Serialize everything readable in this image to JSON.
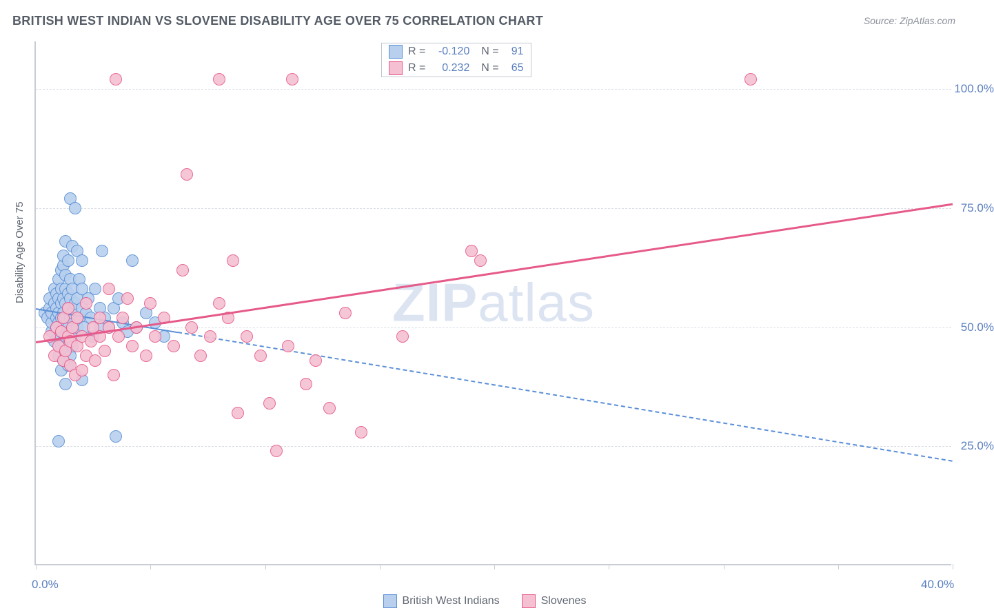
{
  "title": "BRITISH WEST INDIAN VS SLOVENE DISABILITY AGE OVER 75 CORRELATION CHART",
  "source": "Source: ZipAtlas.com",
  "watermark": "ZIPatlas",
  "chart": {
    "type": "scatter",
    "background_color": "#ffffff",
    "grid_color": "#d9dde3",
    "axis_line_color": "#c8ccd4",
    "axis_label_color": "#5a7fbf",
    "title_color": "#555c66",
    "title_fontsize": 18,
    "axis_label_fontsize": 17,
    "ylabel": "Disability Age Over 75",
    "ylabel_fontsize": 15,
    "xlim": [
      0,
      40
    ],
    "ylim": [
      0,
      110
    ],
    "x_axis_labels": [
      {
        "v": 0,
        "label": "0.0%"
      },
      {
        "v": 40,
        "label": "40.0%"
      }
    ],
    "x_tick_positions": [
      0,
      5,
      10,
      15,
      20,
      25,
      30,
      35,
      40
    ],
    "y_gridlines": [
      {
        "v": 25,
        "label": "25.0%"
      },
      {
        "v": 50,
        "label": "50.0%"
      },
      {
        "v": 75,
        "label": "75.0%"
      },
      {
        "v": 100,
        "label": "100.0%"
      }
    ],
    "marker": {
      "radius": 9,
      "stroke_width": 1.2,
      "fill_opacity": 0.35
    },
    "series": [
      {
        "name": "British West Indians",
        "color": "#5a8fd6",
        "fill": "#b8d0ee",
        "R": "-0.120",
        "N": "91",
        "trend": {
          "x1": 0,
          "y1": 54,
          "x2": 40,
          "y2": 22,
          "width": 2.5,
          "solid_until_x": 6.2,
          "dashed": true
        },
        "points": [
          [
            0.4,
            53
          ],
          [
            0.5,
            52
          ],
          [
            0.6,
            54
          ],
          [
            0.6,
            56
          ],
          [
            0.7,
            49
          ],
          [
            0.7,
            51
          ],
          [
            0.7,
            53
          ],
          [
            0.8,
            47
          ],
          [
            0.8,
            55
          ],
          [
            0.8,
            58
          ],
          [
            0.9,
            50
          ],
          [
            0.9,
            52
          ],
          [
            0.9,
            54
          ],
          [
            0.9,
            57
          ],
          [
            1.0,
            44
          ],
          [
            1.0,
            48
          ],
          [
            1.0,
            51
          ],
          [
            1.0,
            53
          ],
          [
            1.0,
            56
          ],
          [
            1.0,
            60
          ],
          [
            1.1,
            41
          ],
          [
            1.1,
            46
          ],
          [
            1.1,
            49
          ],
          [
            1.1,
            52
          ],
          [
            1.1,
            55
          ],
          [
            1.1,
            58
          ],
          [
            1.1,
            62
          ],
          [
            1.2,
            43
          ],
          [
            1.2,
            47
          ],
          [
            1.2,
            50
          ],
          [
            1.2,
            53
          ],
          [
            1.2,
            56
          ],
          [
            1.2,
            63
          ],
          [
            1.2,
            65
          ],
          [
            1.3,
            38
          ],
          [
            1.3,
            45
          ],
          [
            1.3,
            48
          ],
          [
            1.3,
            52
          ],
          [
            1.3,
            55
          ],
          [
            1.3,
            58
          ],
          [
            1.3,
            61
          ],
          [
            1.3,
            68
          ],
          [
            1.4,
            42
          ],
          [
            1.4,
            50
          ],
          [
            1.4,
            54
          ],
          [
            1.4,
            57
          ],
          [
            1.4,
            64
          ],
          [
            1.5,
            44
          ],
          [
            1.5,
            49
          ],
          [
            1.5,
            52
          ],
          [
            1.5,
            56
          ],
          [
            1.5,
            60
          ],
          [
            1.5,
            77
          ],
          [
            1.6,
            46
          ],
          [
            1.6,
            53
          ],
          [
            1.6,
            58
          ],
          [
            1.6,
            67
          ],
          [
            1.7,
            48
          ],
          [
            1.7,
            55
          ],
          [
            1.7,
            75
          ],
          [
            1.8,
            50
          ],
          [
            1.8,
            56
          ],
          [
            1.8,
            66
          ],
          [
            1.9,
            52
          ],
          [
            1.9,
            60
          ],
          [
            2.0,
            39
          ],
          [
            2.0,
            54
          ],
          [
            2.0,
            58
          ],
          [
            2.0,
            64
          ],
          [
            2.1,
            50
          ],
          [
            2.2,
            53
          ],
          [
            2.3,
            56
          ],
          [
            2.4,
            52
          ],
          [
            2.5,
            48
          ],
          [
            2.6,
            58
          ],
          [
            2.8,
            50
          ],
          [
            2.8,
            54
          ],
          [
            2.9,
            66
          ],
          [
            3.0,
            52
          ],
          [
            3.2,
            50
          ],
          [
            3.4,
            54
          ],
          [
            3.6,
            56
          ],
          [
            3.8,
            51
          ],
          [
            4.0,
            49
          ],
          [
            4.2,
            64
          ],
          [
            4.4,
            50
          ],
          [
            4.8,
            53
          ],
          [
            5.2,
            51
          ],
          [
            5.6,
            48
          ],
          [
            1.0,
            26
          ],
          [
            3.5,
            27
          ]
        ]
      },
      {
        "name": "Slovenes",
        "color": "#e65a8a",
        "fill": "#f5c0d2",
        "R": "0.232",
        "N": "65",
        "trend": {
          "x1": 0,
          "y1": 47,
          "x2": 40,
          "y2": 76,
          "width": 3,
          "dashed": false
        },
        "points": [
          [
            0.6,
            48
          ],
          [
            0.8,
            44
          ],
          [
            0.9,
            50
          ],
          [
            1.0,
            46
          ],
          [
            1.1,
            49
          ],
          [
            1.2,
            43
          ],
          [
            1.2,
            52
          ],
          [
            1.3,
            45
          ],
          [
            1.4,
            48
          ],
          [
            1.4,
            54
          ],
          [
            1.5,
            42
          ],
          [
            1.5,
            47
          ],
          [
            1.6,
            50
          ],
          [
            1.7,
            40
          ],
          [
            1.8,
            46
          ],
          [
            1.8,
            52
          ],
          [
            2.0,
            41
          ],
          [
            2.0,
            48
          ],
          [
            2.2,
            44
          ],
          [
            2.2,
            55
          ],
          [
            2.4,
            47
          ],
          [
            2.5,
            50
          ],
          [
            2.6,
            43
          ],
          [
            2.8,
            48
          ],
          [
            2.8,
            52
          ],
          [
            3.0,
            45
          ],
          [
            3.2,
            50
          ],
          [
            3.2,
            58
          ],
          [
            3.4,
            40
          ],
          [
            3.6,
            48
          ],
          [
            3.8,
            52
          ],
          [
            4.0,
            56
          ],
          [
            4.2,
            46
          ],
          [
            4.4,
            50
          ],
          [
            4.8,
            44
          ],
          [
            5.0,
            55
          ],
          [
            5.2,
            48
          ],
          [
            5.6,
            52
          ],
          [
            6.0,
            46
          ],
          [
            6.4,
            62
          ],
          [
            6.6,
            82
          ],
          [
            6.8,
            50
          ],
          [
            7.2,
            44
          ],
          [
            7.6,
            48
          ],
          [
            8.0,
            55
          ],
          [
            8.0,
            102
          ],
          [
            8.4,
            52
          ],
          [
            8.6,
            64
          ],
          [
            8.8,
            32
          ],
          [
            9.2,
            48
          ],
          [
            9.8,
            44
          ],
          [
            10.2,
            34
          ],
          [
            10.5,
            24
          ],
          [
            11.0,
            46
          ],
          [
            11.2,
            102
          ],
          [
            11.8,
            38
          ],
          [
            12.2,
            43
          ],
          [
            12.8,
            33
          ],
          [
            13.5,
            53
          ],
          [
            14.2,
            28
          ],
          [
            16.0,
            48
          ],
          [
            19.0,
            66
          ],
          [
            19.4,
            64
          ],
          [
            31.2,
            102
          ],
          [
            3.5,
            102
          ]
        ]
      }
    ]
  }
}
